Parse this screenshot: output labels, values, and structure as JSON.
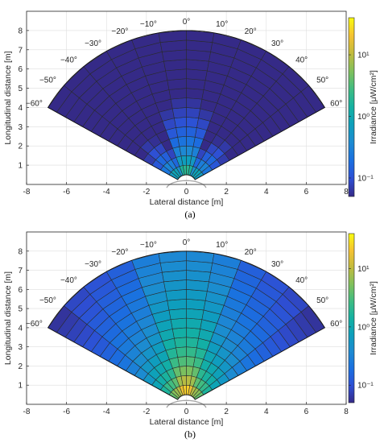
{
  "chart_data": [
    {
      "type": "heatmap",
      "panel_label": "(a)",
      "xlabel": "Lateral distance [m]",
      "ylabel": "Longitudinal distance [m]",
      "colorbar_label": "Irradiance [μW/cm²]",
      "colorbar_scale": "log",
      "colorbar_ticks": [
        "10⁻¹",
        "10⁰",
        "10¹"
      ],
      "xlim": [
        -8,
        8
      ],
      "ylim": [
        0,
        9
      ],
      "xticks": [
        -8,
        -6,
        -4,
        -2,
        0,
        2,
        4,
        6,
        8
      ],
      "yticks": [
        1,
        2,
        3,
        4,
        5,
        6,
        7,
        8
      ],
      "angle_labels": [
        "−60°",
        "−50°",
        "−40°",
        "−30°",
        "−20°",
        "−10°",
        "0°",
        "10°",
        "20°",
        "30°",
        "40°",
        "50°",
        "60°"
      ],
      "grid": true,
      "angles_deg": [
        -60,
        -50,
        -40,
        -30,
        -20,
        -10,
        0,
        10,
        20,
        30,
        40,
        50,
        60
      ],
      "radii_m": [
        0.5,
        1.0,
        1.5,
        2.0,
        2.5,
        3.0,
        3.5,
        4.0,
        4.5,
        5.0,
        5.5,
        6.0,
        6.5,
        7.0,
        7.5,
        8.0
      ],
      "sector_irradiance_at_1m": [
        0.35,
        0.5,
        0.42,
        0.25,
        0.9,
        1.1,
        1.1,
        0.9,
        0.25,
        0.42,
        0.5,
        0.35
      ],
      "distance_exponent": 2
    },
    {
      "type": "heatmap",
      "panel_label": "(b)",
      "xlabel": "Lateral distance [m]",
      "ylabel": "Longitudinal distance [m]",
      "colorbar_label": "Irradiance [μW/cm²]",
      "colorbar_scale": "log",
      "colorbar_ticks": [
        "10⁻¹",
        "10⁰",
        "10¹"
      ],
      "xlim": [
        -8,
        8
      ],
      "ylim": [
        0,
        9
      ],
      "xticks": [
        -8,
        -6,
        -4,
        -2,
        0,
        2,
        4,
        6,
        8
      ],
      "yticks": [
        1,
        2,
        3,
        4,
        5,
        6,
        7,
        8
      ],
      "angle_labels": [
        "−60°",
        "−50°",
        "−40°",
        "−30°",
        "−20°",
        "−10°",
        "0°",
        "10°",
        "20°",
        "30°",
        "40°",
        "50°",
        "60°"
      ],
      "grid": true,
      "angles_deg": [
        -60,
        -50,
        -40,
        -30,
        -20,
        -10,
        0,
        10,
        20,
        30,
        40,
        50,
        60
      ],
      "radii_m": [
        0.5,
        1.0,
        1.5,
        2.0,
        2.5,
        3.0,
        3.5,
        4.0,
        4.5,
        5.0,
        5.5,
        6.0,
        6.5,
        7.0,
        7.5,
        8.0
      ],
      "sector_irradiance_at_1m": [
        2.4,
        3.4,
        4.2,
        5.5,
        11,
        14,
        14,
        11,
        5.5,
        4.2,
        3.4,
        2.4
      ],
      "distance_exponent": 1.8
    }
  ]
}
